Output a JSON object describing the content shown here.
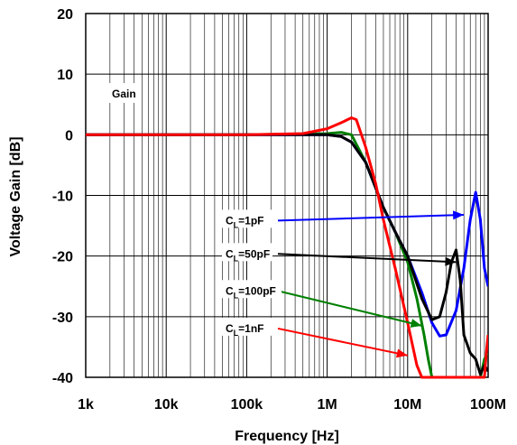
{
  "chart_data": {
    "type": "line",
    "title": "",
    "xlabel": "Frequency [Hz]",
    "ylabel": "Voltage Gain [dB]",
    "xscale": "log",
    "xlim": [
      1000,
      100000000
    ],
    "ylim": [
      -40,
      20
    ],
    "x_ticks": [
      1000,
      10000,
      100000,
      1000000,
      10000000,
      100000000
    ],
    "x_tick_labels": [
      "1k",
      "10k",
      "100k",
      "1M",
      "10M",
      "100M"
    ],
    "y_ticks": [
      20,
      10,
      0,
      -10,
      -20,
      -30,
      -40
    ],
    "y_tick_labels": [
      "20",
      "10",
      "0",
      "-10",
      "-20",
      "-30",
      "-40"
    ],
    "grid": true,
    "gain_label": "Gain",
    "series": [
      {
        "name": "CL=1pF",
        "label_main": "C",
        "label_sub": "L",
        "label_rest": "=1pF",
        "color": "#0000ff",
        "points": [
          [
            1000,
            0
          ],
          [
            100000,
            0
          ],
          [
            1000000,
            0
          ],
          [
            1500000,
            -0.3
          ],
          [
            2000000,
            -1.2
          ],
          [
            3000000,
            -4.5
          ],
          [
            5000000,
            -12
          ],
          [
            7000000,
            -16
          ],
          [
            10000000,
            -20
          ],
          [
            15000000,
            -26
          ],
          [
            20000000,
            -31
          ],
          [
            25000000,
            -33.2
          ],
          [
            30000000,
            -33
          ],
          [
            40000000,
            -29
          ],
          [
            50000000,
            -22
          ],
          [
            60000000,
            -14
          ],
          [
            70000000,
            -9.5
          ],
          [
            80000000,
            -14
          ],
          [
            90000000,
            -22
          ],
          [
            100000000,
            -25
          ]
        ]
      },
      {
        "name": "CL=50pF",
        "label_main": "C",
        "label_sub": "L",
        "label_rest": "=50pF",
        "color": "#000000",
        "points": [
          [
            1000,
            0
          ],
          [
            100000,
            0
          ],
          [
            1000000,
            0
          ],
          [
            1500000,
            -0.3
          ],
          [
            2000000,
            -1.2
          ],
          [
            3000000,
            -4.5
          ],
          [
            5000000,
            -12
          ],
          [
            7000000,
            -16
          ],
          [
            10000000,
            -20
          ],
          [
            15000000,
            -27
          ],
          [
            20000000,
            -30.5
          ],
          [
            25000000,
            -30
          ],
          [
            30000000,
            -26
          ],
          [
            35000000,
            -21
          ],
          [
            40000000,
            -19
          ],
          [
            45000000,
            -24
          ],
          [
            50000000,
            -33
          ],
          [
            60000000,
            -36
          ],
          [
            70000000,
            -37
          ],
          [
            80000000,
            -39.5
          ],
          [
            90000000,
            -38
          ],
          [
            100000000,
            -39
          ]
        ]
      },
      {
        "name": "CL=100pF",
        "label_main": "C",
        "label_sub": "L",
        "label_rest": "=100pF",
        "color": "#008000",
        "points": [
          [
            1000,
            0
          ],
          [
            100000,
            0
          ],
          [
            1000000,
            0.2
          ],
          [
            1500000,
            0.4
          ],
          [
            2000000,
            0
          ],
          [
            3000000,
            -4.5
          ],
          [
            5000000,
            -12
          ],
          [
            7000000,
            -16
          ],
          [
            10000000,
            -21
          ],
          [
            13000000,
            -27
          ],
          [
            16000000,
            -33
          ],
          [
            18000000,
            -37
          ],
          [
            20000000,
            -40
          ],
          [
            80000000,
            -40
          ],
          [
            90000000,
            -37
          ],
          [
            100000000,
            -36
          ]
        ]
      },
      {
        "name": "CL=1nF",
        "label_main": "C",
        "label_sub": "L",
        "label_rest": "=1nF",
        "color": "#ff0000",
        "points": [
          [
            1000,
            0
          ],
          [
            100000,
            0
          ],
          [
            500000,
            0.2
          ],
          [
            1000000,
            1
          ],
          [
            1500000,
            2
          ],
          [
            2000000,
            2.8
          ],
          [
            2300000,
            2.5
          ],
          [
            3000000,
            -2
          ],
          [
            4000000,
            -8
          ],
          [
            5000000,
            -14
          ],
          [
            7000000,
            -22
          ],
          [
            10000000,
            -31
          ],
          [
            13000000,
            -38
          ],
          [
            15000000,
            -40
          ],
          [
            90000000,
            -40
          ],
          [
            95000000,
            -36
          ],
          [
            100000000,
            -33
          ]
        ]
      }
    ]
  }
}
